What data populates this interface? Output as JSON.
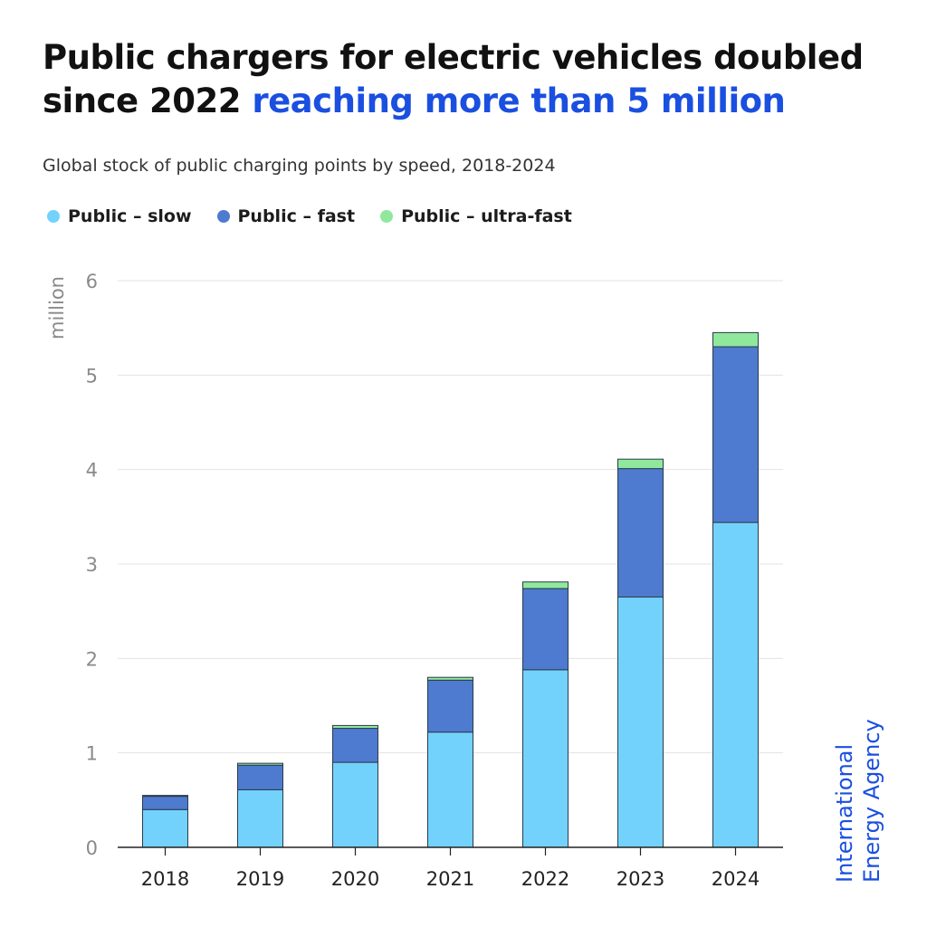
{
  "header": {
    "title_main": "Public chargers for electric vehicles doubled since 2022",
    "title_accent": "reaching more than 5 million",
    "subtitle": "Global stock of public charging points by speed, 2018-2024"
  },
  "legend": [
    {
      "label": "Public – slow",
      "color": "#73d2fb"
    },
    {
      "label": "Public – fast",
      "color": "#4e7bcf"
    },
    {
      "label": "Public – ultra-fast",
      "color": "#90e89d"
    }
  ],
  "brand": {
    "line1": "International",
    "line2": "Energy Agency"
  },
  "chart_data": {
    "type": "bar",
    "stacked": true,
    "categories": [
      "2018",
      "2019",
      "2020",
      "2021",
      "2022",
      "2023",
      "2024"
    ],
    "series": [
      {
        "name": "Public – slow",
        "color": "#73d2fb",
        "values": [
          0.4,
          0.61,
          0.9,
          1.22,
          1.88,
          2.65,
          3.44
        ]
      },
      {
        "name": "Public – fast",
        "color": "#4e7bcf",
        "values": [
          0.14,
          0.26,
          0.36,
          0.55,
          0.86,
          1.36,
          1.86
        ]
      },
      {
        "name": "Public – ultra-fast",
        "color": "#90e89d",
        "values": [
          0.01,
          0.02,
          0.03,
          0.03,
          0.07,
          0.1,
          0.15
        ]
      }
    ],
    "ylabel": "million",
    "ylim": [
      0,
      6
    ],
    "yticks": [
      "0",
      "1",
      "2",
      "3",
      "4",
      "5",
      "6"
    ],
    "grid": true
  }
}
